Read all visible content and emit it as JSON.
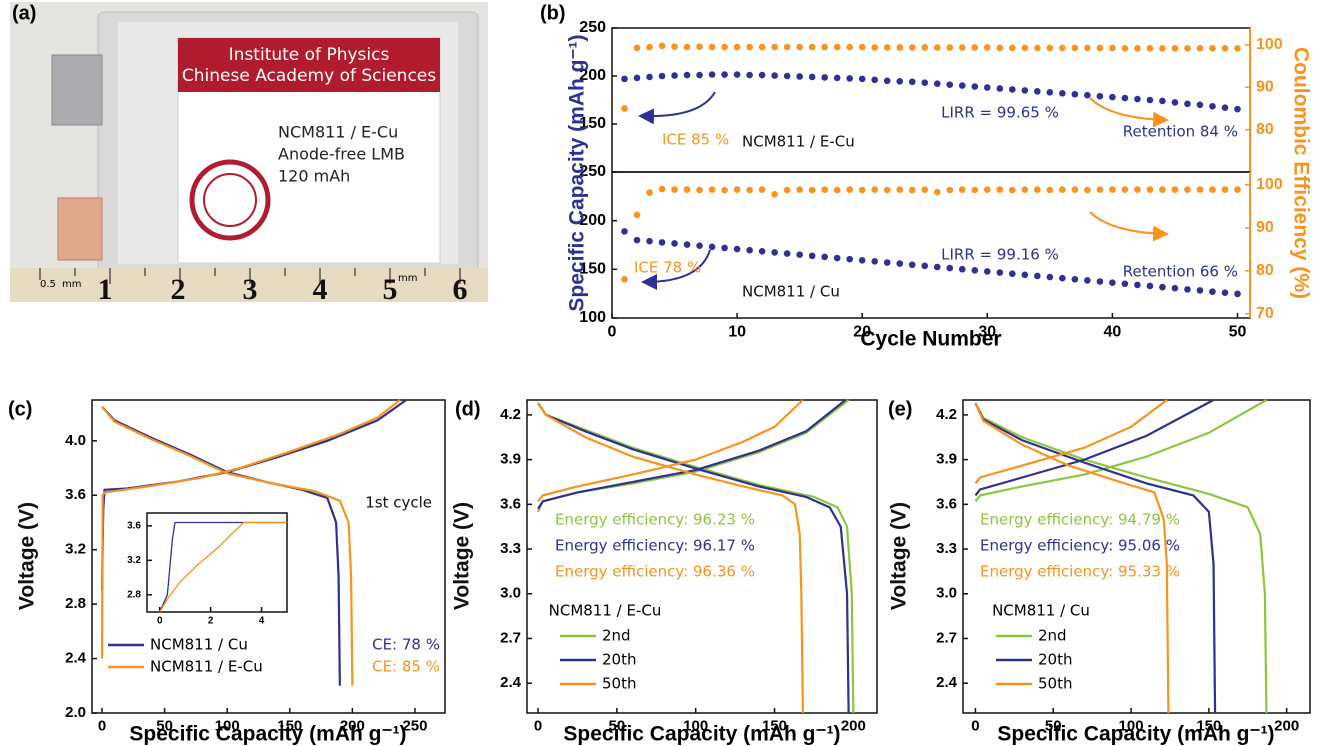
{
  "photo": {
    "panel": "(a)",
    "sticker": [
      "Institute of Physics",
      "Chinese Academy of Sciences"
    ],
    "cell": [
      "NCM811 / E-Cu",
      "Anode-free LMB",
      "120 mAh"
    ],
    "ruler_numbers": [
      "1",
      "2",
      "3",
      "4",
      "5",
      "6"
    ],
    "ruler_units": [
      "0.5",
      "mm",
      "mm"
    ]
  },
  "chart_data": [
    {
      "type": "scatter",
      "panel": "(b)",
      "x": [
        1,
        2,
        3,
        4,
        5,
        6,
        7,
        8,
        9,
        10,
        11,
        12,
        13,
        14,
        15,
        16,
        17,
        18,
        19,
        20,
        21,
        22,
        23,
        24,
        25,
        26,
        27,
        28,
        29,
        30,
        31,
        32,
        33,
        34,
        35,
        36,
        37,
        38,
        39,
        40,
        41,
        42,
        43,
        44,
        45,
        46,
        47,
        48,
        49,
        50
      ],
      "xlim": [
        0,
        51
      ],
      "ylim": [
        100,
        250
      ],
      "yticks": [
        150,
        200,
        250
      ],
      "y2lim": [
        70,
        104
      ],
      "y2ticks": [
        80,
        90,
        100
      ],
      "y2_color": "#f7931e",
      "series": [
        {
          "color": "#2e3192",
          "values": [
            197,
            198,
            199,
            200,
            200.5,
            201,
            201,
            201.5,
            201.5,
            201.5,
            201,
            201,
            200.5,
            200,
            199.5,
            199,
            198.5,
            198,
            197.5,
            197,
            196,
            195,
            194.5,
            194,
            193,
            192,
            191,
            190,
            189,
            188,
            187,
            186,
            185,
            184,
            183,
            182,
            181,
            180,
            179,
            178,
            177,
            176,
            175,
            174,
            172.5,
            171,
            170,
            168.5,
            167,
            165.5
          ]
        },
        {
          "color": "#f7931e",
          "axis": "y2",
          "values": [
            85,
            99.3,
            99.5,
            99.8,
            99.6,
            99.5,
            99.6,
            99.5,
            99.5,
            99.5,
            99.5,
            99.5,
            99.5,
            99.5,
            99.5,
            99.5,
            99.5,
            99.5,
            99.5,
            99.5,
            99.4,
            99.4,
            99.4,
            99.4,
            99.4,
            99.4,
            99.4,
            99.4,
            99.4,
            99.4,
            99.3,
            99.3,
            99.3,
            99.3,
            99.3,
            99.3,
            99.3,
            99.3,
            99.3,
            99.3,
            99.2,
            99.2,
            99.2,
            99.2,
            99.2,
            99.2,
            99.2,
            99.2,
            99.2,
            99.2
          ]
        }
      ],
      "annotations": [
        {
          "text": "ICE 85 %",
          "color": "#f7931e"
        },
        {
          "text": "NCM811 / E-Cu",
          "color": "#111111"
        },
        {
          "text": "LIRR = 99.65 %",
          "color": "#2e3192"
        },
        {
          "text": "Retention 84 %",
          "color": "#2e3192"
        }
      ]
    },
    {
      "type": "scatter",
      "x": [
        1,
        2,
        3,
        4,
        5,
        6,
        7,
        8,
        9,
        10,
        11,
        12,
        13,
        14,
        15,
        16,
        17,
        18,
        19,
        20,
        21,
        22,
        23,
        24,
        25,
        26,
        27,
        28,
        29,
        30,
        31,
        32,
        33,
        34,
        35,
        36,
        37,
        38,
        39,
        40,
        41,
        42,
        43,
        44,
        45,
        46,
        47,
        48,
        49,
        50
      ],
      "xlim": [
        0,
        51
      ],
      "xticks": [
        0,
        10,
        20,
        30,
        40,
        50
      ],
      "xlabel": "Cycle Number",
      "ylim": [
        100,
        250
      ],
      "yticks": [
        100,
        150,
        200,
        250
      ],
      "ylabel": "Specific Capacity (mAh g⁻¹)",
      "ylabel_color": "#2e3192",
      "y2lim": [
        69,
        103
      ],
      "y2ticks": [
        70,
        80,
        90,
        100
      ],
      "y2label": "Coulombic Efficiency (%)",
      "y2_color": "#f7931e",
      "series": [
        {
          "color": "#2e3192",
          "values": [
            189,
            180,
            178.9,
            177.7,
            176.6,
            175.4,
            174.3,
            173.1,
            172,
            170.8,
            169.7,
            168.5,
            167.4,
            166.2,
            165.1,
            163.9,
            162.8,
            161.6,
            160.5,
            159.3,
            158.2,
            157,
            155.9,
            154.7,
            153.6,
            152.4,
            151.3,
            150.1,
            149,
            147.8,
            146.7,
            145.5,
            144.4,
            143.2,
            142.1,
            140.9,
            139.8,
            138.6,
            137.5,
            136.3,
            135.2,
            134,
            132.9,
            131.7,
            130.6,
            129.4,
            128.3,
            127.1,
            126,
            124.8
          ]
        },
        {
          "color": "#f7931e",
          "axis": "y2",
          "values": [
            78,
            93,
            98.2,
            99,
            98.9,
            98.9,
            98.8,
            98.9,
            98.8,
            98.9,
            98.8,
            98.9,
            97.8,
            98.8,
            98.9,
            98.8,
            98.9,
            98.8,
            98.9,
            98.8,
            98.9,
            98.8,
            98.9,
            98.8,
            98.9,
            98.3,
            98.8,
            98.9,
            98.8,
            98.9,
            98.9,
            98.8,
            98.9,
            98.9,
            98.8,
            98.9,
            98.9,
            98.8,
            98.9,
            98.9,
            98.9,
            98.9,
            98.9,
            98.9,
            98.9,
            98.9,
            98.9,
            98.9,
            98.9,
            98.9
          ]
        }
      ],
      "annotations": [
        {
          "text": "ICE 78 %",
          "color": "#f7931e"
        },
        {
          "text": "NCM811 / Cu",
          "color": "#111111"
        },
        {
          "text": "LIRR = 99.16 %",
          "color": "#2e3192"
        },
        {
          "text": "Retention 66 %",
          "color": "#2e3192"
        }
      ]
    },
    {
      "type": "line",
      "panel": "(c)",
      "xlim": [
        -8,
        274
      ],
      "xticks": [
        0,
        50,
        100,
        150,
        200,
        250
      ],
      "xlabel": "Specific Capacity (mAh g⁻¹)",
      "ylim": [
        2,
        4.3
      ],
      "yticks": [
        {
          "value": 2,
          "label": "2.0"
        },
        2.4,
        2.8,
        3.2,
        3.6,
        {
          "value": 4,
          "label": "4.0"
        }
      ],
      "ylabel": "Voltage (V)",
      "legend": "lower left",
      "series": [
        {
          "name": "NCM811 / Cu",
          "color": "#2e3192",
          "x": [
            0,
            1,
            2,
            20,
            60,
            100,
            140,
            180,
            220,
            243,
            null,
            0,
            10,
            40,
            70,
            100,
            130,
            160,
            180,
            187,
            189,
            190
          ],
          "values": [
            2.9,
            3.5,
            3.64,
            3.65,
            3.7,
            3.77,
            3.88,
            4,
            4.15,
            4.3,
            null,
            4.25,
            4.15,
            4.02,
            3.9,
            3.77,
            3.7,
            3.64,
            3.58,
            3.4,
            3,
            2.2
          ]
        },
        {
          "name": "NCM811 / E-Cu",
          "color": "#f7931e",
          "x": [
            0,
            0.5,
            2,
            40,
            80,
            110,
            150,
            190,
            220,
            238,
            null,
            0,
            10,
            40,
            70,
            100,
            140,
            170,
            190,
            197,
            199,
            200
          ],
          "values": [
            2.4,
            3.6,
            3.62,
            3.67,
            3.73,
            3.8,
            3.92,
            4.05,
            4.17,
            4.3,
            null,
            4.25,
            4.14,
            4.01,
            3.89,
            3.76,
            3.68,
            3.63,
            3.56,
            3.4,
            3,
            2.2
          ]
        }
      ],
      "annotations": [
        {
          "text": "1st cycle",
          "color": "#111111"
        },
        {
          "text": "CE: 78 %",
          "color": "#2e3192"
        },
        {
          "text": "CE: 85 %",
          "color": "#f7931e"
        }
      ]
    },
    {
      "type": "line",
      "xlim": [
        -0.5,
        5
      ],
      "xticks": [
        0,
        2,
        4
      ],
      "ylim": [
        2.6,
        3.75
      ],
      "yticks": [
        2.8,
        3.2,
        3.6
      ],
      "series": [
        {
          "color": "#2e3192",
          "x": [
            0,
            0.3,
            0.5,
            0.6,
            5
          ],
          "values": [
            2.6,
            2.8,
            3.45,
            3.64,
            3.64
          ]
        },
        {
          "color": "#f7931e",
          "x": [
            0,
            0.3,
            0.8,
            1.5,
            2.3,
            2.8,
            3.3,
            5
          ],
          "values": [
            2.6,
            2.75,
            2.95,
            3.15,
            3.35,
            3.5,
            3.64,
            3.64
          ]
        }
      ]
    },
    {
      "type": "line",
      "panel": "(d)",
      "xlim": [
        -7,
        215
      ],
      "xticks": [
        0,
        50,
        100,
        150,
        200
      ],
      "xlabel": "Specific Capacity (mAh g⁻¹)",
      "ylim": [
        2.2,
        4.3
      ],
      "yticks": [
        2.4,
        2.7,
        {
          "value": 3,
          "label": "3.0"
        },
        3.3,
        3.6,
        3.9,
        4.2
      ],
      "ylabel": "Voltage (V)",
      "legend": "lower left",
      "legend_title": "NCM811 / E-Cu",
      "series": [
        {
          "name": "2nd",
          "color": "#8cc63f",
          "x": [
            0,
            3,
            25,
            60,
            100,
            140,
            170,
            197,
            null,
            0,
            5,
            30,
            60,
            100,
            140,
            175,
            190,
            196,
            199,
            200
          ],
          "values": [
            3.55,
            3.62,
            3.68,
            3.74,
            3.82,
            3.95,
            4.08,
            4.3,
            null,
            4.28,
            4.2,
            4.1,
            3.98,
            3.85,
            3.73,
            3.65,
            3.58,
            3.45,
            3,
            2.2
          ]
        },
        {
          "name": "20th",
          "color": "#2e3192",
          "x": [
            0,
            3,
            25,
            60,
            100,
            140,
            170,
            195,
            null,
            0,
            5,
            30,
            60,
            100,
            140,
            170,
            185,
            192,
            196,
            197
          ],
          "values": [
            3.57,
            3.62,
            3.68,
            3.75,
            3.83,
            3.96,
            4.09,
            4.3,
            null,
            4.28,
            4.2,
            4.09,
            3.97,
            3.84,
            3.72,
            3.65,
            3.58,
            3.45,
            3,
            2.2
          ]
        },
        {
          "name": "50th",
          "color": "#f7931e",
          "x": [
            0,
            3,
            25,
            60,
            100,
            130,
            150,
            168,
            null,
            0,
            5,
            30,
            60,
            100,
            130,
            155,
            163,
            166,
            167,
            168
          ],
          "values": [
            3.62,
            3.66,
            3.72,
            3.8,
            3.9,
            4.02,
            4.12,
            4.3,
            null,
            4.28,
            4.2,
            4.05,
            3.92,
            3.8,
            3.72,
            3.66,
            3.6,
            3.4,
            3,
            2.2
          ]
        }
      ],
      "annotations": [
        {
          "text": "Energy efficiency: 96.23 %",
          "color": "#8cc63f"
        },
        {
          "text": "Energy efficiency: 96.17 %",
          "color": "#2e3192"
        },
        {
          "text": "Energy efficiency: 96.36 %",
          "color": "#f7931e"
        }
      ]
    },
    {
      "type": "line",
      "panel": "(e)",
      "xlim": [
        -8,
        215
      ],
      "xticks": [
        0,
        50,
        100,
        150,
        200
      ],
      "xlabel": "Specific Capacity (mAh g⁻¹)",
      "ylim": [
        2.2,
        4.3
      ],
      "yticks": [
        2.4,
        2.7,
        {
          "value": 3,
          "label": "3.0"
        },
        3.3,
        3.6,
        3.9,
        4.2
      ],
      "ylabel": "Voltage (V)",
      "legend": "lower left",
      "legend_title": "NCM811 / Cu",
      "series": [
        {
          "name": "2nd",
          "color": "#8cc63f",
          "x": [
            0,
            3,
            30,
            70,
            110,
            150,
            187,
            null,
            0,
            5,
            30,
            70,
            110,
            150,
            175,
            183,
            186,
            187
          ],
          "values": [
            3.62,
            3.66,
            3.72,
            3.8,
            3.92,
            4.08,
            4.3,
            null,
            4.28,
            4.18,
            4.05,
            3.9,
            3.78,
            3.67,
            3.58,
            3.4,
            3,
            2.2
          ]
        },
        {
          "name": "20th",
          "color": "#2e3192",
          "x": [
            0,
            3,
            30,
            70,
            110,
            153,
            null,
            0,
            5,
            30,
            70,
            110,
            140,
            150,
            153,
            154
          ],
          "values": [
            3.66,
            3.7,
            3.78,
            3.9,
            4.06,
            4.3,
            null,
            4.28,
            4.17,
            4.03,
            3.88,
            3.74,
            3.66,
            3.55,
            3.2,
            2.2
          ]
        },
        {
          "name": "50th",
          "color": "#f7931e",
          "x": [
            0,
            3,
            30,
            70,
            100,
            123,
            null,
            0,
            5,
            30,
            60,
            90,
            115,
            121,
            123,
            124
          ],
          "values": [
            3.74,
            3.78,
            3.86,
            3.98,
            4.12,
            4.3,
            null,
            4.28,
            4.16,
            4,
            3.86,
            3.76,
            3.68,
            3.5,
            3.2,
            2.2
          ]
        }
      ],
      "annotations": [
        {
          "text": "Energy efficiency: 94.79 %",
          "color": "#8cc63f"
        },
        {
          "text": "Energy efficiency: 95.06 %",
          "color": "#2e3192"
        },
        {
          "text": "Energy efficiency: 95.33 %",
          "color": "#f7931e"
        }
      ]
    }
  ]
}
